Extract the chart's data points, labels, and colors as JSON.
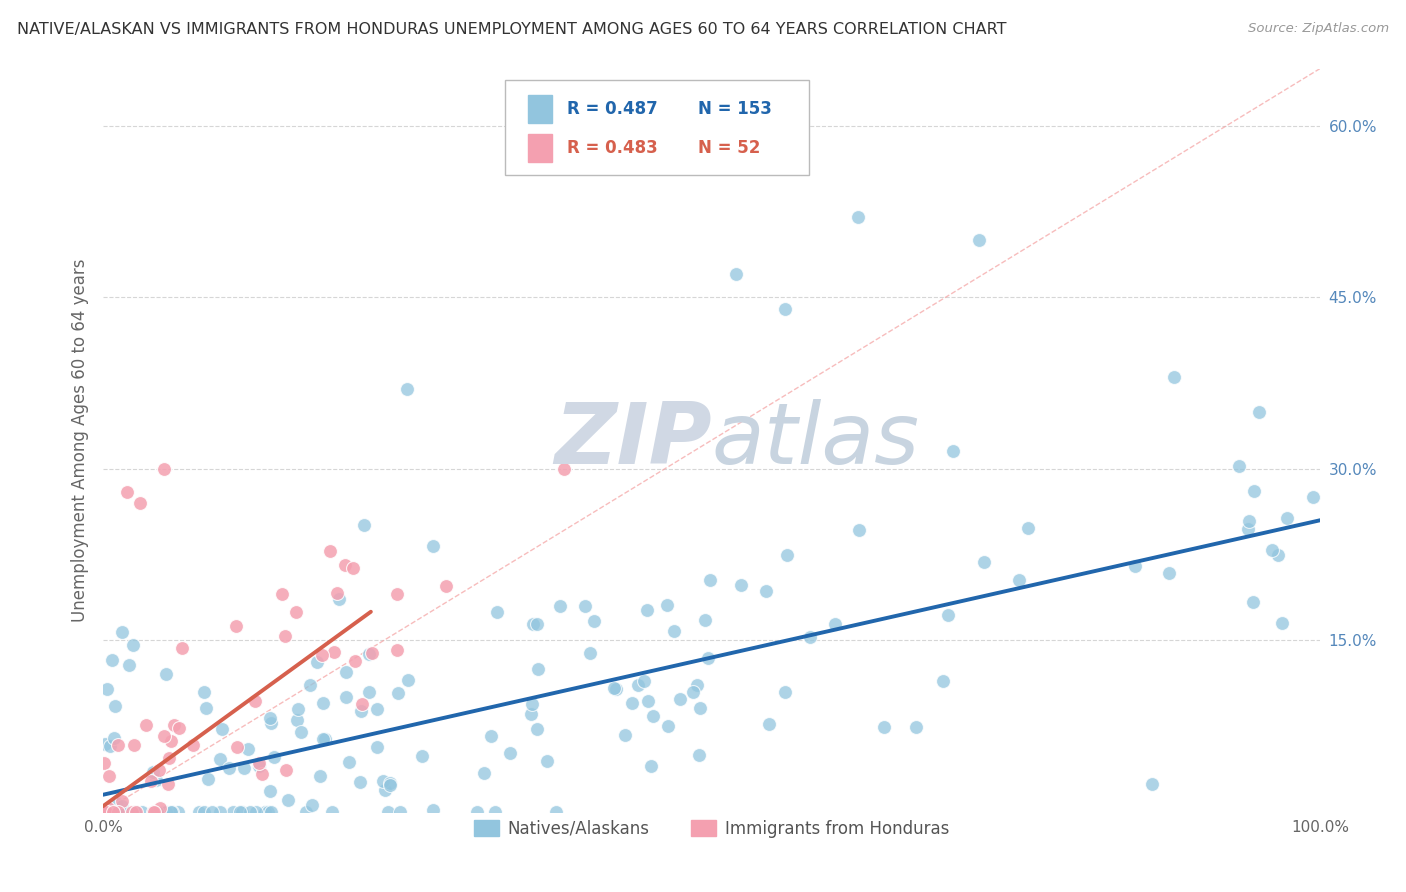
{
  "title": "NATIVE/ALASKAN VS IMMIGRANTS FROM HONDURAS UNEMPLOYMENT AMONG AGES 60 TO 64 YEARS CORRELATION CHART",
  "source": "Source: ZipAtlas.com",
  "ylabel": "Unemployment Among Ages 60 to 64 years",
  "xlim": [
    0.0,
    1.0
  ],
  "ylim": [
    0.0,
    0.65
  ],
  "yticks": [
    0.0,
    0.15,
    0.3,
    0.45,
    0.6
  ],
  "yticklabels": [
    "",
    "15.0%",
    "30.0%",
    "45.0%",
    "60.0%"
  ],
  "blue_color": "#92c5de",
  "pink_color": "#f4a0b0",
  "blue_line_color": "#2166ac",
  "pink_line_color": "#d6604d",
  "ref_line_color": "#f4a0a0",
  "watermark": "ZIPatlas",
  "legend_R_blue": "0.487",
  "legend_N_blue": "153",
  "legend_R_pink": "0.483",
  "legend_N_pink": "52",
  "legend_label_blue": "Natives/Alaskans",
  "legend_label_pink": "Immigrants from Honduras",
  "background_color": "#ffffff",
  "grid_color": "#cccccc",
  "blue_trend_x0": 0.0,
  "blue_trend_x1": 1.0,
  "blue_trend_y0": 0.015,
  "blue_trend_y1": 0.255,
  "pink_trend_x0": 0.0,
  "pink_trend_x1": 0.22,
  "pink_trend_y0": 0.005,
  "pink_trend_y1": 0.175
}
